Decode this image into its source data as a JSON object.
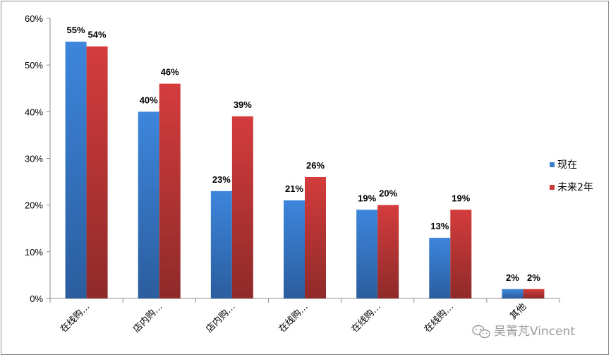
{
  "chart_data": {
    "type": "bar",
    "categories": [
      "在线购…",
      "店内购…",
      "店内购…",
      "在线购…",
      "在线购…",
      "在线购…",
      "其他"
    ],
    "series": [
      {
        "name": "现在",
        "values": [
          55,
          40,
          23,
          21,
          19,
          13,
          2
        ],
        "labels": [
          "55%",
          "40%",
          "23%",
          "21%",
          "19%",
          "13%",
          "2%"
        ],
        "color": "#3a7ccc"
      },
      {
        "name": "未来2年",
        "values": [
          54,
          46,
          39,
          26,
          20,
          19,
          2
        ],
        "labels": [
          "54%",
          "46%",
          "39%",
          "26%",
          "20%",
          "19%",
          "2%"
        ],
        "color": "#c93a3a"
      }
    ],
    "ylim": [
      0,
      60
    ],
    "yticks": [
      0,
      10,
      20,
      30,
      40,
      50,
      60
    ],
    "ytick_labels": [
      "0%",
      "10%",
      "20%",
      "30%",
      "40%",
      "50%",
      "60%"
    ],
    "legend_position": "right",
    "grid": false
  },
  "watermark": {
    "icon": "wechat-icon",
    "text": "吴菁芃Vincent"
  }
}
